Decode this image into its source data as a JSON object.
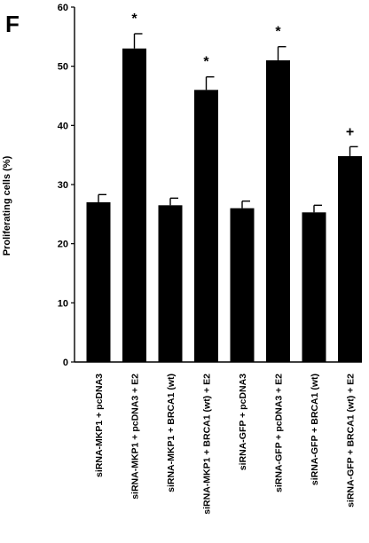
{
  "panel_label": "F",
  "chart_data": {
    "type": "bar",
    "ylabel": "Proliferating cells (%)",
    "xlabel": "",
    "ylim": [
      0,
      60
    ],
    "yticks": [
      0,
      10,
      20,
      30,
      40,
      50,
      60
    ],
    "grid": false,
    "legend": "none",
    "bar_color": "#000000",
    "categories": [
      "siRNA-MKP1 + pcDNA3",
      "siRNA-MKP1 + pcDNA3 + E2",
      "siRNA-MKP1 + BRCA1 (wt)",
      "siRNA-MKP1 + BRCA1 (wt) + E2",
      "siRNA-GFP + pcDNA3",
      "siRNA-GFP + pcDNA3 + E2",
      "siRNA-GFP + BRCA1 (wt)",
      "siRNA-GFP + BRCA1 (wt) + E2"
    ],
    "values": [
      27.0,
      53.0,
      26.5,
      46.0,
      26.0,
      51.0,
      25.3,
      34.8
    ],
    "errors": [
      1.3,
      2.5,
      1.2,
      2.2,
      1.2,
      2.3,
      1.2,
      1.6
    ],
    "annotations": [
      "",
      "*",
      "",
      "*",
      "",
      "*",
      "",
      "+"
    ]
  }
}
